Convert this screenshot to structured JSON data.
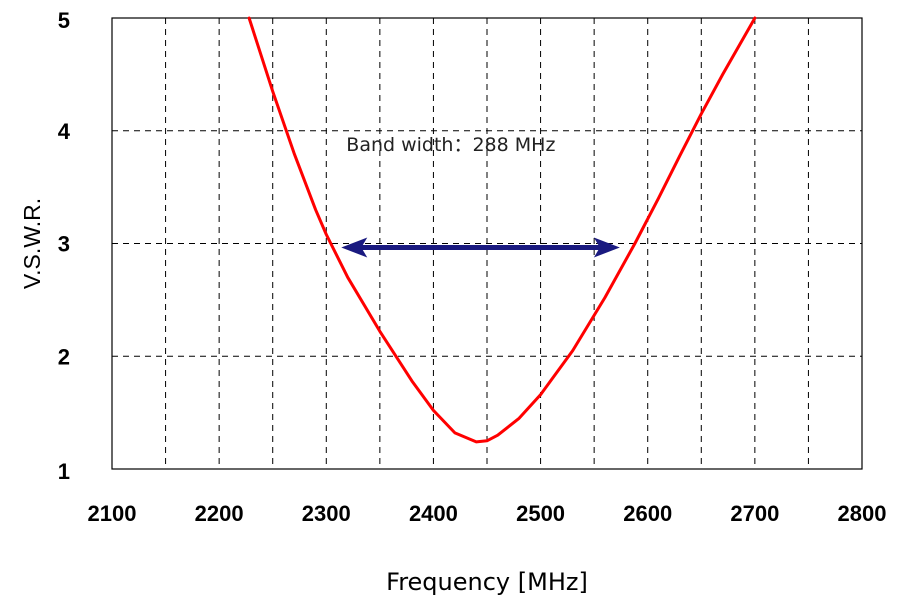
{
  "chart_data": {
    "type": "line",
    "xlabel": "Frequency [MHz]",
    "ylabel": "V.S.W.R.",
    "xlim": [
      2100,
      2800
    ],
    "ylim": [
      1,
      5
    ],
    "xticks": [
      "2100",
      "2200",
      "2300",
      "2400",
      "2500",
      "2600",
      "2700",
      "2800"
    ],
    "yticks": [
      "1",
      "2",
      "3",
      "4",
      "5"
    ],
    "grid": "dashed",
    "series": [
      {
        "color": "#ff0000",
        "x": [
          2228,
          2250,
          2270,
          2290,
          2300,
          2320,
          2350,
          2380,
          2400,
          2420,
          2440,
          2450,
          2460,
          2480,
          2500,
          2530,
          2560,
          2588,
          2610,
          2630,
          2650,
          2670,
          2700
        ],
        "y": [
          5.0,
          4.35,
          3.8,
          3.3,
          3.08,
          2.7,
          2.22,
          1.78,
          1.52,
          1.32,
          1.24,
          1.25,
          1.3,
          1.45,
          1.66,
          2.05,
          2.52,
          3.0,
          3.4,
          3.78,
          4.15,
          4.5,
          5.0
        ]
      }
    ],
    "annotation": {
      "text": "Band width：288 MHz",
      "arrow_x": [
        2300,
        2588
      ],
      "arrow_y": 3,
      "arrow_color": "#1a1a80"
    }
  }
}
